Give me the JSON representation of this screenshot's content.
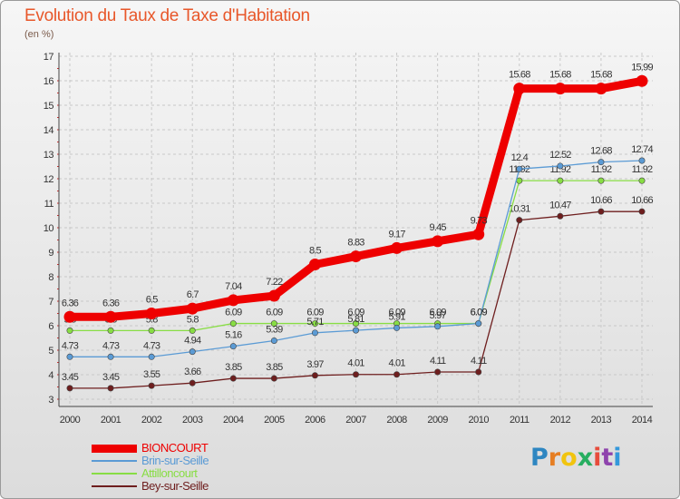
{
  "chart_data": {
    "type": "line",
    "title": "Evolution du Taux de Taxe d'Habitation",
    "subtitle": "(en %)",
    "x": [
      2000,
      2001,
      2002,
      2003,
      2004,
      2005,
      2006,
      2007,
      2008,
      2009,
      2010,
      2011,
      2012,
      2013,
      2014
    ],
    "ylim": [
      3,
      17
    ],
    "yticks": [
      3,
      4,
      5,
      6,
      7,
      8,
      9,
      10,
      11,
      12,
      13,
      14,
      15,
      16,
      17
    ],
    "grid": true,
    "legend_position": "bottom-left",
    "series": [
      {
        "name": "Bey-sur-Seille",
        "color": "#6e1e1e",
        "values": [
          3.45,
          3.45,
          3.55,
          3.66,
          3.85,
          3.85,
          3.97,
          4.01,
          4.01,
          4.11,
          4.11,
          10.31,
          10.47,
          10.66,
          10.66
        ],
        "labels": [
          "3.45",
          "3.45",
          "3.55",
          "3.66",
          "3.85",
          "3.85",
          "3.97",
          "4.01",
          "4.01",
          "4.11",
          "4.11",
          "10.31",
          "10.47",
          "10.66",
          "10.66"
        ]
      },
      {
        "name": "Attilloncourt",
        "color": "#88dd44",
        "values": [
          5.8,
          5.8,
          5.8,
          5.8,
          6.09,
          6.09,
          6.09,
          6.09,
          6.09,
          6.09,
          6.09,
          11.92,
          11.92,
          11.92,
          11.92
        ],
        "labels": [
          "5.8",
          "5.8",
          "5.8",
          "5.8",
          "6.09",
          "6.09",
          "6.09",
          "6.09",
          "6.09",
          "6.09",
          "6.09",
          "11.92",
          "11.92",
          "11.92",
          "11.92"
        ]
      },
      {
        "name": "Brin-sur-Seille",
        "color": "#5b9bd5",
        "values": [
          4.73,
          4.73,
          4.73,
          4.94,
          5.16,
          5.39,
          5.71,
          5.81,
          5.91,
          5.97,
          6.09,
          12.4,
          12.52,
          12.68,
          12.74
        ],
        "labels": [
          "4.73",
          "4.73",
          "4.73",
          "4.94",
          "5.16",
          "5.39",
          "5.71",
          "5.81",
          "5.91",
          "5.97",
          "6.09",
          "12.4",
          "12.52",
          "12.68",
          "12.74"
        ]
      },
      {
        "name": "BIONCOURT",
        "color": "#ee0000",
        "values": [
          6.36,
          6.36,
          6.5,
          6.7,
          7.04,
          7.22,
          8.5,
          8.83,
          9.17,
          9.45,
          9.73,
          15.68,
          15.68,
          15.68,
          15.99
        ],
        "labels": [
          "6.36",
          "6.36",
          "6.5",
          "6.7",
          "7.04",
          "7.22",
          "8.5",
          "8.83",
          "9.17",
          "9.45",
          "9.73",
          "15.68",
          "15.68",
          "15.68",
          "15.99"
        ]
      }
    ]
  },
  "legend": [
    {
      "label": "BIONCOURT",
      "color": "#ee0000",
      "thick": true
    },
    {
      "label": "Brin-sur-Seille",
      "color": "#5b9bd5",
      "thick": false
    },
    {
      "label": "Attilloncourt",
      "color": "#88dd44",
      "thick": false
    },
    {
      "label": "Bey-sur-Seille",
      "color": "#6e1e1e",
      "thick": false
    }
  ],
  "brand": {
    "letters": [
      "P",
      "r",
      "o",
      "x",
      "i",
      "t",
      "i"
    ],
    "colors": [
      "#2e86c1",
      "#e67e22",
      "#f1c40f",
      "#27ae60",
      "#e74c3c",
      "#8e44ad",
      "#3498db"
    ]
  }
}
